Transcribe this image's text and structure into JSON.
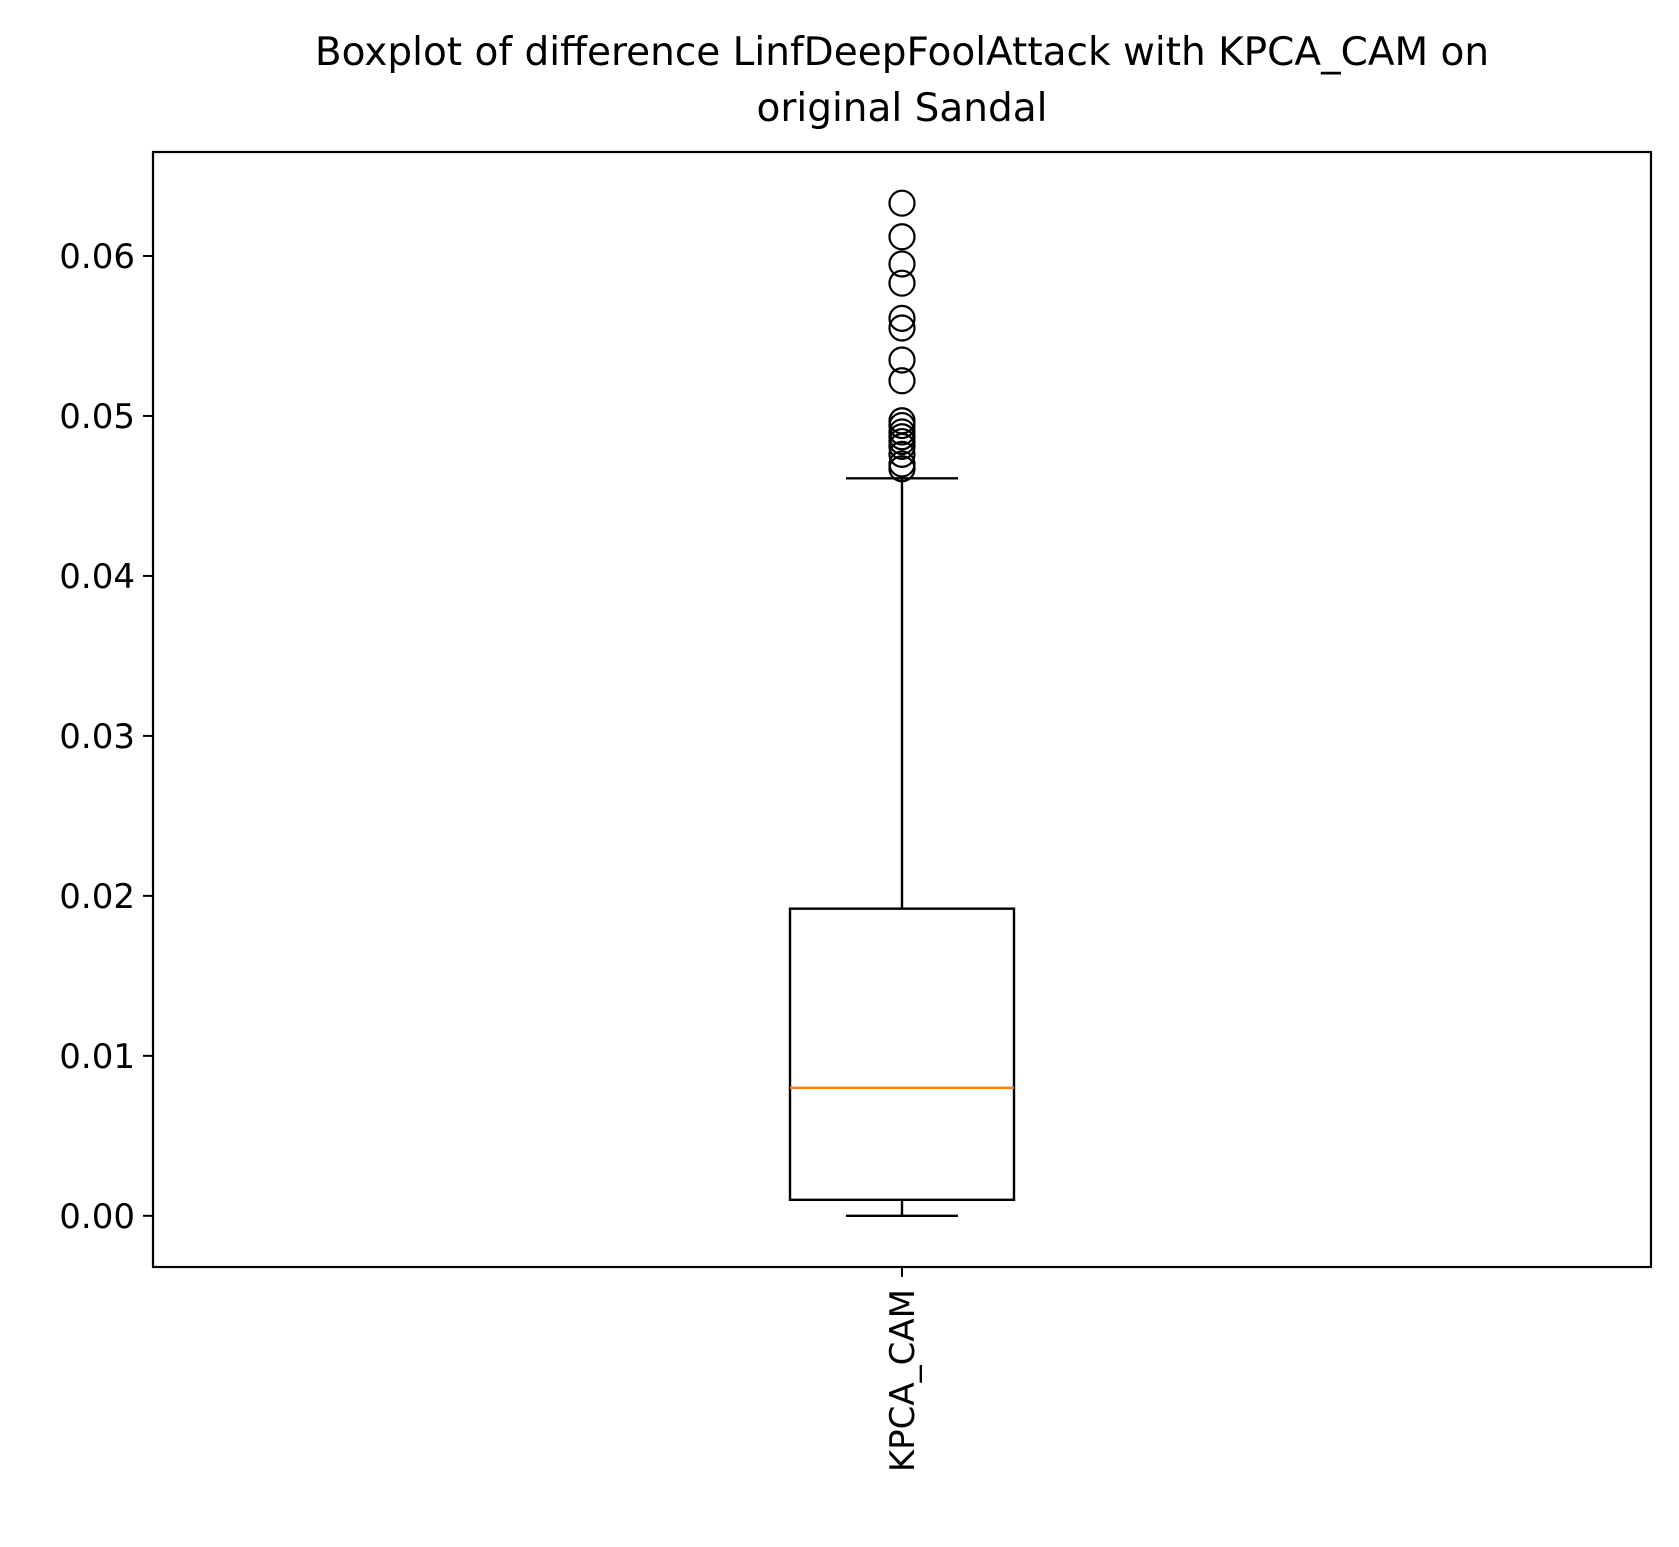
{
  "chart_data": {
    "type": "boxplot",
    "title": "Boxplot of difference LinfDeepFoolAttack with KPCA_CAM on original Sandal",
    "title_lines": [
      "Boxplot of difference LinfDeepFoolAttack with KPCA_CAM on",
      "original Sandal"
    ],
    "xlabel": "",
    "ylabel": "",
    "ylim": [
      -0.0032,
      0.0665
    ],
    "yticks": [
      0.0,
      0.01,
      0.02,
      0.03,
      0.04,
      0.05,
      0.06
    ],
    "ytick_labels": [
      "0.00",
      "0.01",
      "0.02",
      "0.03",
      "0.04",
      "0.05",
      "0.06"
    ],
    "categories": [
      "KPCA_CAM"
    ],
    "grid": false,
    "boxes": [
      {
        "name": "KPCA_CAM",
        "whisker_low": 0.0,
        "q1": 0.001,
        "median": 0.008,
        "q3": 0.0192,
        "whisker_high": 0.0461,
        "outliers": [
          0.0467,
          0.047,
          0.0476,
          0.0481,
          0.0484,
          0.0487,
          0.049,
          0.0494,
          0.0497,
          0.0522,
          0.0535,
          0.0555,
          0.0561,
          0.0583,
          0.0595,
          0.0612,
          0.0633
        ]
      }
    ],
    "colors": {
      "box": "#000000",
      "median": "#ff7f0e",
      "axes": "#000000",
      "background": "#ffffff"
    }
  }
}
